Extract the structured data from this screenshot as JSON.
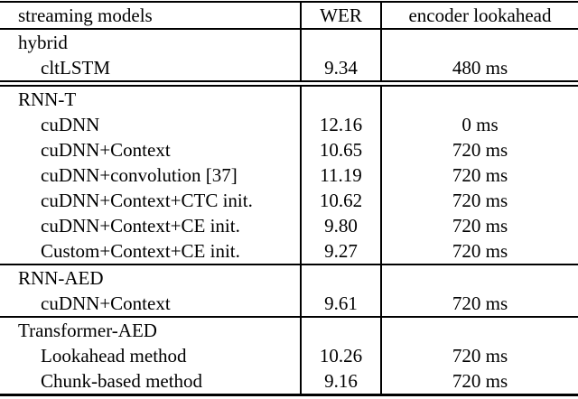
{
  "colors": {
    "text": "#000000",
    "border": "#000000",
    "background": "#ffffff"
  },
  "table": {
    "headers": [
      "streaming models",
      "WER",
      "encoder lookahead"
    ],
    "sections": [
      {
        "name": "hybrid",
        "rule_above": "none",
        "rows": [
          {
            "model": "cltLSTM",
            "wer": "9.34",
            "lookahead": "480 ms"
          }
        ]
      },
      {
        "name": "RNN-T",
        "rule_above": "double",
        "rows": [
          {
            "model": "cuDNN",
            "wer": "12.16",
            "lookahead": "0 ms"
          },
          {
            "model": "cuDNN+Context",
            "wer": "10.65",
            "lookahead": "720 ms"
          },
          {
            "model": "cuDNN+convolution [37]",
            "wer": "11.19",
            "lookahead": "720 ms"
          },
          {
            "model": "cuDNN+Context+CTC init.",
            "wer": "10.62",
            "lookahead": "720 ms"
          },
          {
            "model": "cuDNN+Context+CE init.",
            "wer": "9.80",
            "lookahead": "720 ms"
          },
          {
            "model": "Custom+Context+CE init.",
            "wer": "9.27",
            "lookahead": "720 ms"
          }
        ]
      },
      {
        "name": "RNN-AED",
        "rule_above": "single",
        "rows": [
          {
            "model": "cuDNN+Context",
            "wer": "9.61",
            "lookahead": "720 ms"
          }
        ]
      },
      {
        "name": "Transformer-AED",
        "rule_above": "single",
        "rows": [
          {
            "model": "Lookahead method",
            "wer": "10.26",
            "lookahead": "720 ms"
          },
          {
            "model": "Chunk-based method",
            "wer": "9.16",
            "lookahead": "720 ms"
          }
        ]
      }
    ]
  }
}
